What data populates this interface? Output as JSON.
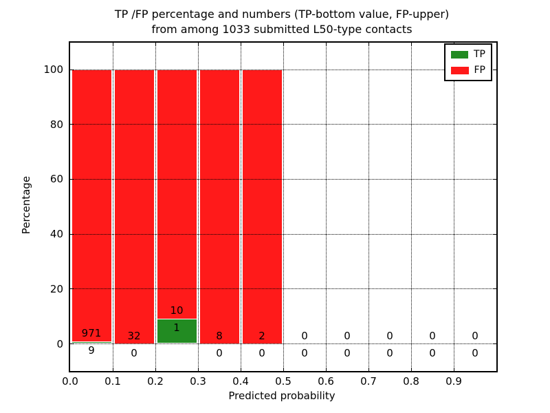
{
  "colors": {
    "tp_green": "#228b22",
    "fp_red": "#ff1a1a",
    "grid": "#000000",
    "text": "#000000",
    "background": "#ffffff"
  },
  "chart_data": {
    "type": "bar",
    "stacked": true,
    "normalized_per_bin_percent": true,
    "title_line1": "TP /FP percentage and numbers (TP-bottom value, FP-upper)",
    "title_line2": "from among 1033 submitted L50-type contacts",
    "xlabel": "Predicted probability",
    "ylabel": "Percentage",
    "total_contacts": 1033,
    "xlim": [
      0.0,
      1.0
    ],
    "ylim": [
      -10,
      110
    ],
    "bin_width": 0.1,
    "grid": "dotted black, vertical every 0.1, horizontal every 20",
    "x_tick_labels": [
      "0.0",
      "0.1",
      "0.2",
      "0.3",
      "0.4",
      "0.5",
      "0.6",
      "0.7",
      "0.8",
      "0.9"
    ],
    "y_tick_values": [
      0,
      20,
      40,
      60,
      80,
      100
    ],
    "legend": {
      "position": "upper right",
      "items": [
        {
          "label": "TP",
          "color": "#228b22"
        },
        {
          "label": "FP",
          "color": "#ff1a1a"
        }
      ]
    },
    "bins": [
      {
        "range": "0.0-0.1",
        "tp": 9,
        "fp": 971,
        "tp_pct": 0.92,
        "fp_pct": 99.08
      },
      {
        "range": "0.1-0.2",
        "tp": 0,
        "fp": 32,
        "tp_pct": 0,
        "fp_pct": 100
      },
      {
        "range": "0.2-0.3",
        "tp": 1,
        "fp": 10,
        "tp_pct": 9.09,
        "fp_pct": 90.91
      },
      {
        "range": "0.3-0.4",
        "tp": 0,
        "fp": 8,
        "tp_pct": 0,
        "fp_pct": 100
      },
      {
        "range": "0.4-0.5",
        "tp": 0,
        "fp": 2,
        "tp_pct": 0,
        "fp_pct": 100
      },
      {
        "range": "0.5-0.6",
        "tp": 0,
        "fp": 0,
        "tp_pct": 0,
        "fp_pct": 0
      },
      {
        "range": "0.6-0.7",
        "tp": 0,
        "fp": 0,
        "tp_pct": 0,
        "fp_pct": 0
      },
      {
        "range": "0.7-0.8",
        "tp": 0,
        "fp": 0,
        "tp_pct": 0,
        "fp_pct": 0
      },
      {
        "range": "0.8-0.9",
        "tp": 0,
        "fp": 0,
        "tp_pct": 0,
        "fp_pct": 0
      },
      {
        "range": "0.9-1.0",
        "tp": 0,
        "fp": 0,
        "tp_pct": 0,
        "fp_pct": 0
      }
    ]
  }
}
